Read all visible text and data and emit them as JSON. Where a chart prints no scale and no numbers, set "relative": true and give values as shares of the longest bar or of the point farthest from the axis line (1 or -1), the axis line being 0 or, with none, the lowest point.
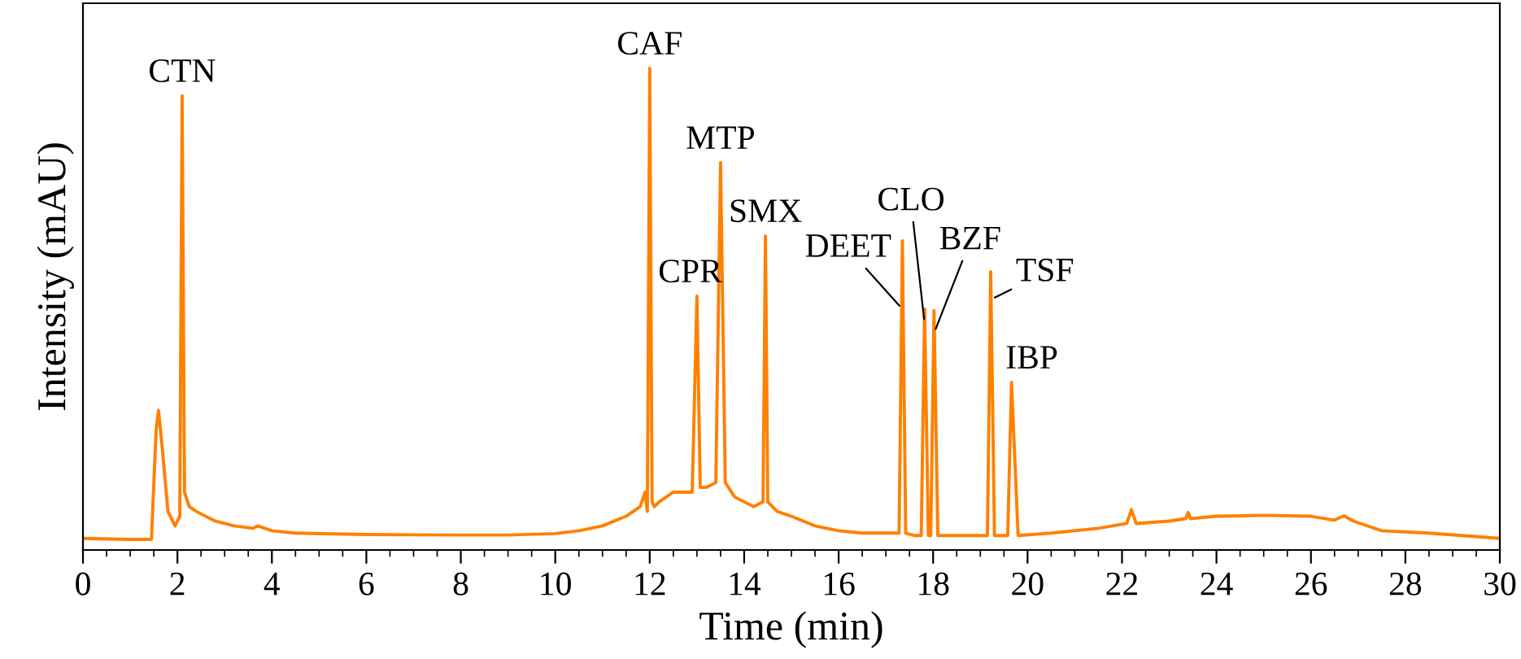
{
  "chart_data": {
    "type": "line",
    "relative": true,
    "xlabel": "Time (min)",
    "ylabel": "Intensity (mAU)",
    "xlim": [
      0,
      30
    ],
    "xticks": [
      0,
      2,
      4,
      6,
      8,
      10,
      12,
      14,
      16,
      18,
      20,
      22,
      24,
      26,
      28,
      30
    ],
    "grid": false,
    "legend": false,
    "marker": "none",
    "line_style": "solid",
    "series": [
      {
        "color": "#ff8000",
        "x": [
          0,
          1.0,
          1.45,
          1.55,
          1.6,
          1.68,
          1.8,
          1.95,
          2.05,
          2.1,
          2.15,
          2.25,
          2.4,
          2.8,
          3.2,
          3.6,
          3.7,
          4.0,
          4.5,
          6,
          8,
          9,
          10,
          10.5,
          11,
          11.5,
          11.8,
          11.9,
          11.95,
          12.0,
          12.05,
          12.1,
          12.2,
          12.5,
          12.9,
          13.0,
          13.07,
          13.2,
          13.4,
          13.5,
          13.6,
          13.8,
          14.2,
          14.4,
          14.45,
          14.5,
          14.7,
          15.0,
          15.5,
          16,
          16.5,
          17.0,
          17.28,
          17.35,
          17.42,
          17.6,
          17.75,
          17.82,
          17.9,
          17.95,
          18.02,
          18.1,
          18.5,
          19.0,
          19.15,
          19.22,
          19.3,
          19.5,
          19.58,
          19.66,
          19.8,
          20.5,
          21.5,
          22.1,
          22.2,
          22.3,
          23,
          23.35,
          23.4,
          23.45,
          24,
          25,
          26,
          26.5,
          26.7,
          26.9,
          27.5,
          28.5,
          29.2,
          30
        ],
        "values": [
          0.024,
          0.022,
          0.022,
          0.25,
          0.29,
          0.21,
          0.08,
          0.05,
          0.07,
          0.943,
          0.12,
          0.09,
          0.08,
          0.06,
          0.05,
          0.045,
          0.05,
          0.04,
          0.035,
          0.032,
          0.031,
          0.031,
          0.034,
          0.04,
          0.05,
          0.07,
          0.09,
          0.12,
          0.08,
          1.0,
          0.1,
          0.09,
          0.1,
          0.12,
          0.12,
          0.527,
          0.13,
          0.13,
          0.14,
          0.804,
          0.14,
          0.11,
          0.09,
          0.1,
          0.652,
          0.1,
          0.08,
          0.07,
          0.05,
          0.04,
          0.035,
          0.035,
          0.035,
          0.642,
          0.035,
          0.03,
          0.03,
          0.5,
          0.03,
          0.03,
          0.497,
          0.03,
          0.03,
          0.03,
          0.03,
          0.578,
          0.03,
          0.03,
          0.03,
          0.348,
          0.03,
          0.035,
          0.045,
          0.055,
          0.084,
          0.055,
          0.06,
          0.065,
          0.078,
          0.065,
          0.07,
          0.072,
          0.07,
          0.062,
          0.071,
          0.06,
          0.04,
          0.035,
          0.03,
          0.024
        ]
      }
    ],
    "annotations": [
      {
        "text": "CTN",
        "x": 2.1,
        "y": 0.943
      },
      {
        "text": "CAF",
        "x": 12.0,
        "y": 1.0
      },
      {
        "text": "CPR",
        "x": 13.0,
        "y": 0.527
      },
      {
        "text": "MTP",
        "x": 13.5,
        "y": 0.804
      },
      {
        "text": "SMX",
        "x": 14.45,
        "y": 0.652
      },
      {
        "text": "DEET",
        "x": 17.35,
        "y": 0.5
      },
      {
        "text": "CLO",
        "x": 17.82,
        "y": 0.47
      },
      {
        "text": "BZF",
        "x": 18.02,
        "y": 0.45
      },
      {
        "text": "TSF",
        "x": 19.22,
        "y": 0.52
      },
      {
        "text": "IBP",
        "x": 19.66,
        "y": 0.348
      }
    ]
  }
}
